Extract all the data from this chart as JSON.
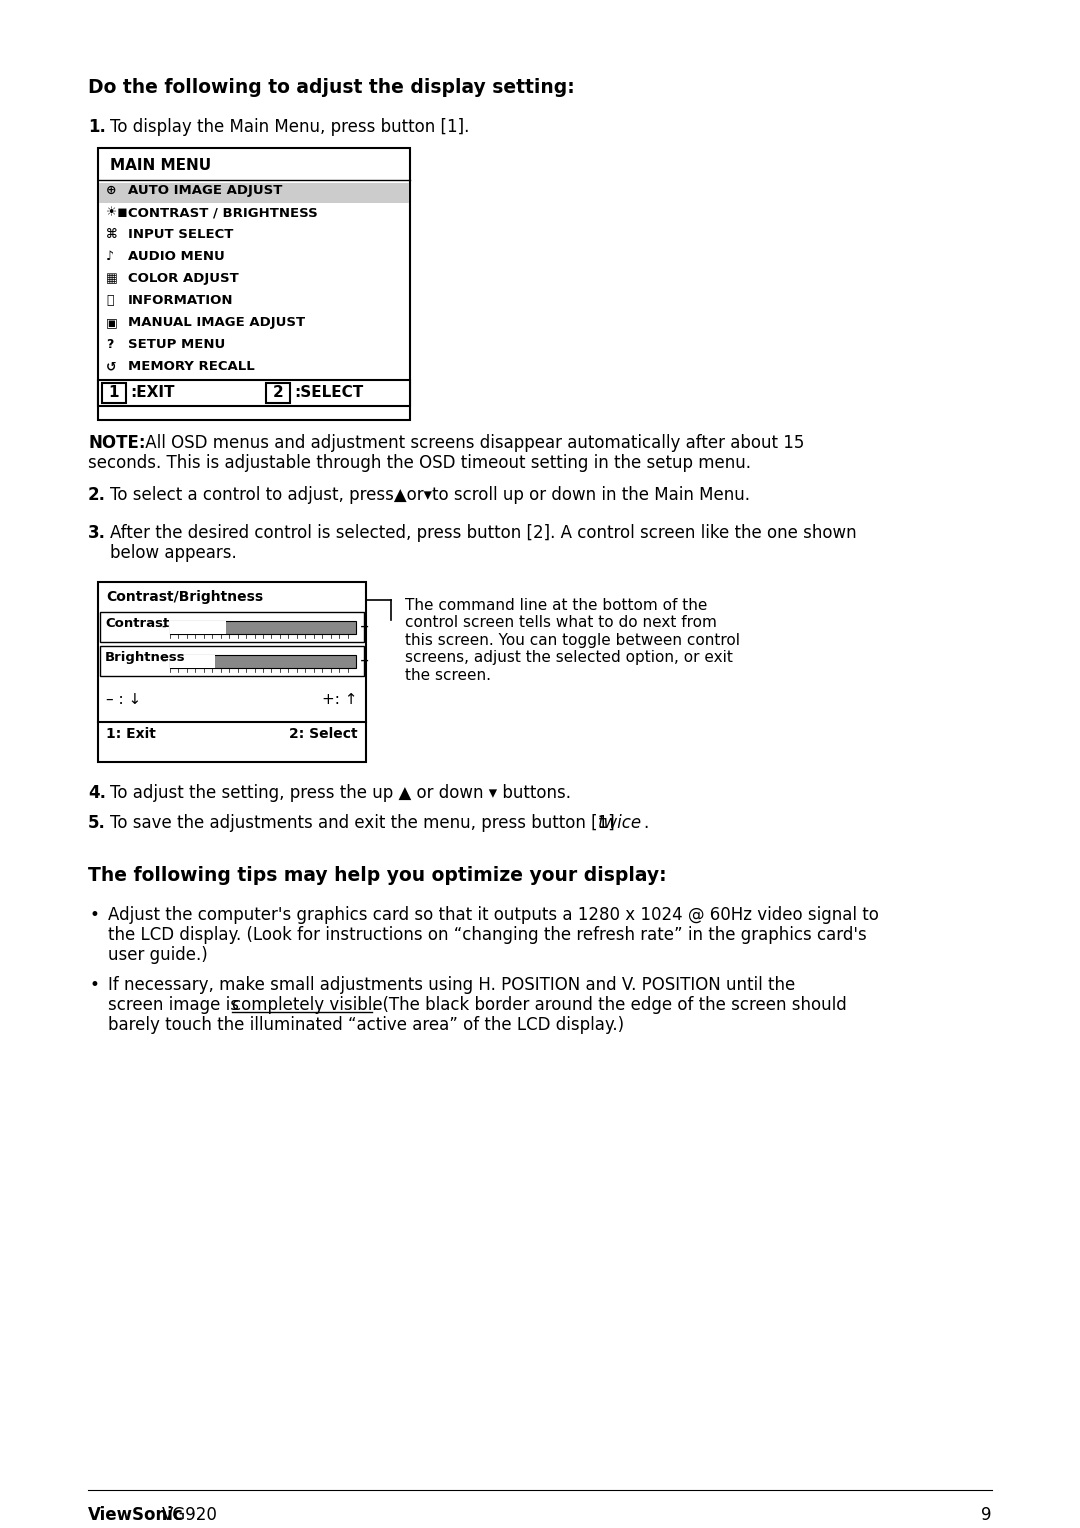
{
  "bg_color": "#ffffff",
  "text_color": "#000000",
  "heading1": "Do the following to adjust the display setting:",
  "step1": "To display the Main Menu, press button [1].",
  "note_bold": "NOTE:",
  "note_rest": " All OSD menus and adjustment screens disappear automatically after about 15",
  "note_line2": "seconds. This is adjustable through the OSD timeout setting in the setup menu.",
  "step2_bold": "2.",
  "step2_rest": "To select a control to adjust, press▲or▾to scroll up or down in the Main Menu.",
  "step3_bold": "3.",
  "step3_line1": "After the desired control is selected, press button [2]. A control screen like the one shown",
  "step3_line2": "below appears.",
  "cb_title": "Contrast/Brightness",
  "cb_label1": "Contrast",
  "cb_label2": "Brightness",
  "cb_exit": "1: Exit",
  "cb_select": "2: Select",
  "callout_text": "The command line at the bottom of the\ncontrol screen tells what to do next from\nthis screen. You can toggle between control\nscreens, adjust the selected option, or exit\nthe screen.",
  "step4_bold": "4.",
  "step4_rest": "To adjust the setting, press the up ▲ or down ▾ buttons.",
  "step5_bold": "5.",
  "step5_normal": "To save the adjustments and exit the menu, press button [1] ",
  "step5_italic": "twice",
  "step5_end": ".",
  "heading2": "The following tips may help you optimize your display:",
  "bullet1_line1": "Adjust the computer's graphics card so that it outputs a 1280 x 1024 @ 60Hz video signal to",
  "bullet1_line2": "the LCD display. (Look for instructions on “changing the refresh rate” in the graphics card's",
  "bullet1_line3": "user guide.)",
  "bullet2_line1": "If necessary, make small adjustments using H. POSITION and V. POSITION until the",
  "bullet2_line2a": "screen image is ",
  "bullet2_line2b": "completely visible",
  "bullet2_line2c": ". (The black border around the edge of the screen should",
  "bullet2_line3": "barely touch the illuminated “active area” of the LCD display.)",
  "footer_brand": "ViewSonic",
  "footer_model": "VG920",
  "footer_page": "9"
}
